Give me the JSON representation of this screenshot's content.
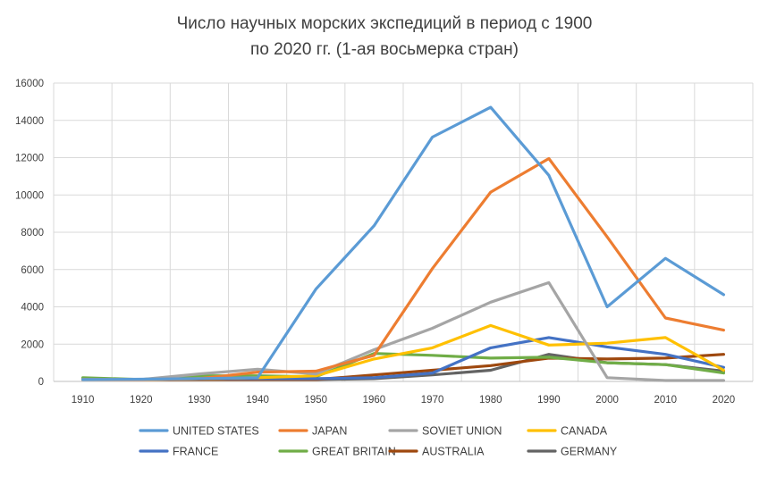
{
  "chart_data": {
    "type": "line",
    "title_lines": [
      "Число научных морских экспедиций в период с 1900",
      "по 2020 гг. (1-ая восьмерка стран)"
    ],
    "xlabel": "",
    "ylabel": "",
    "categories": [
      "1910",
      "1920",
      "1930",
      "1940",
      "1950",
      "1960",
      "1970",
      "1980",
      "1990",
      "2000",
      "2010",
      "2020"
    ],
    "ylim": [
      0,
      16000
    ],
    "yticks": [
      "0",
      "2000",
      "4000",
      "6000",
      "8000",
      "10000",
      "12000",
      "14000",
      "16000"
    ],
    "grid": "vertical and horizontal",
    "legend_position": "bottom",
    "series": [
      {
        "name": "UNITED STATES",
        "color": "#5B9BD5",
        "values": [
          100,
          120,
          150,
          200,
          4950,
          8350,
          13100,
          14700,
          11050,
          4000,
          6600,
          4650
        ]
      },
      {
        "name": "JAPAN",
        "color": "#ED7D31",
        "values": [
          100,
          100,
          150,
          500,
          550,
          1400,
          6050,
          10150,
          11950,
          7750,
          3400,
          2750
        ]
      },
      {
        "name": "SOVIET UNION",
        "color": "#A5A5A5",
        "values": [
          100,
          100,
          400,
          650,
          400,
          1700,
          2850,
          4250,
          5300,
          200,
          50,
          50
        ]
      },
      {
        "name": "CANADA",
        "color": "#FFC000",
        "values": [
          100,
          100,
          150,
          200,
          300,
          1200,
          1800,
          3000,
          1950,
          2050,
          2350,
          600
        ]
      },
      {
        "name": "FRANCE",
        "color": "#4472C4",
        "values": [
          100,
          100,
          150,
          150,
          150,
          200,
          450,
          1800,
          2350,
          1850,
          1450,
          750
        ]
      },
      {
        "name": "GREAT BRITAIN",
        "color": "#70AD47",
        "values": [
          200,
          100,
          300,
          300,
          250,
          1500,
          1400,
          1250,
          1300,
          1000,
          900,
          450
        ]
      },
      {
        "name": "AUSTRALIA",
        "color": "#9E480E",
        "values": [
          100,
          100,
          100,
          100,
          100,
          350,
          600,
          850,
          1250,
          1200,
          1250,
          1450
        ]
      },
      {
        "name": "GERMANY",
        "color": "#636363",
        "values": [
          100,
          100,
          100,
          100,
          100,
          150,
          350,
          600,
          1450,
          1000,
          900,
          550
        ]
      }
    ]
  }
}
